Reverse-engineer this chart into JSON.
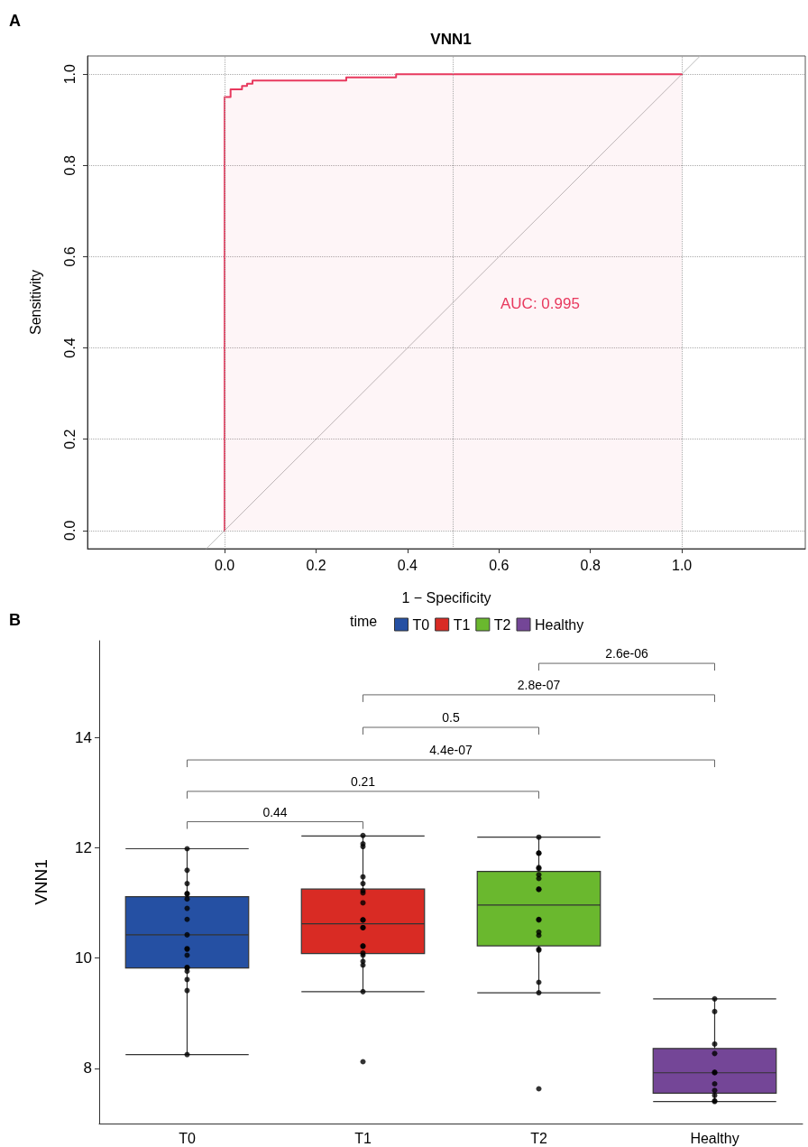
{
  "chart_data": [
    {
      "type": "line",
      "title": "VNN1",
      "xlabel": "1 − Specificity",
      "ylabel": "Sensitivity",
      "annotations": [
        "A",
        "AUC: 0.995"
      ],
      "xlim": [
        -0.3,
        1.27
      ],
      "ylim": [
        -0.04,
        1.04
      ],
      "xticks": [
        {
          "value": 0,
          "label": "0.0"
        },
        {
          "value": 0.2,
          "label": "0.2"
        },
        {
          "value": 0.4,
          "label": "0.4"
        },
        {
          "value": 0.6,
          "label": "0.6"
        },
        {
          "value": 0.8,
          "label": "0.8"
        },
        {
          "value": 1,
          "label": "1.0"
        }
      ],
      "yticks": [
        {
          "value": 0,
          "label": "0.0"
        },
        {
          "value": 0.2,
          "label": "0.2"
        },
        {
          "value": 0.4,
          "label": "0.4"
        },
        {
          "value": 0.6,
          "label": "0.6"
        },
        {
          "value": 0.8,
          "label": "0.8"
        },
        {
          "value": 1,
          "label": "1.0"
        }
      ],
      "grid": "y",
      "ref_lines": [
        {
          "axis": "x",
          "value": 0,
          "color": "#aaaaaa",
          "line_style": "dotted"
        },
        {
          "axis": "x",
          "value": 0.5,
          "color": "#aaaaaa",
          "line_style": "dotted"
        },
        {
          "axis": "x",
          "value": 1,
          "color": "#aaaaaa",
          "line_style": "dotted"
        }
      ],
      "series": [
        {
          "type": "area",
          "color": "#e8395e",
          "x": [
            0,
            0,
            0.013,
            0.013,
            0.038,
            0.038,
            0.049,
            0.049,
            0.061,
            0.061,
            0.266,
            0.266,
            0.375,
            0.375,
            1
          ],
          "values": [
            0,
            0.95,
            0.95,
            0.967,
            0.967,
            0.974,
            0.974,
            0.979,
            0.979,
            0.986,
            0.986,
            0.993,
            0.993,
            1,
            1
          ]
        },
        {
          "type": "line",
          "color": "#bbbbbb",
          "x": [
            -0.04,
            1.04
          ],
          "values": [
            -0.04,
            1.04
          ]
        }
      ]
    },
    {
      "type": "box",
      "ylabel": "VNN1",
      "legend": "top",
      "legend_title": "time",
      "categories": [
        "T0",
        "T1",
        "T2",
        "Healthy"
      ],
      "ylim": [
        7.0,
        15.75
      ],
      "yticks": [
        8,
        10,
        12,
        14
      ],
      "annotations": [
        "B",
        "2.6e-06",
        "2.8e-07",
        "0.5",
        "4.4e-07",
        "0.21",
        "0.44"
      ],
      "series": [
        {
          "type": "box",
          "name": "T0",
          "color": "#2550a3",
          "x": [
            "T0"
          ],
          "boxes": [
            {
              "low": 8.25,
              "q1": 9.82,
              "median": 10.42,
              "q3": 11.11,
              "high": 11.98
            }
          ]
        },
        {
          "type": "box",
          "name": "T1",
          "color": "#d92b24",
          "x": [
            "T1"
          ],
          "boxes": [
            {
              "low": 9.39,
              "q1": 10.08,
              "median": 10.62,
              "q3": 11.25,
              "high": 12.21
            }
          ]
        },
        {
          "type": "box",
          "name": "T2",
          "color": "#6ab82e",
          "x": [
            "T2"
          ],
          "boxes": [
            {
              "low": 9.37,
              "q1": 10.22,
              "median": 10.96,
              "q3": 11.57,
              "high": 12.19
            }
          ]
        },
        {
          "type": "box",
          "name": "Healthy",
          "color": "#744697",
          "x": [
            "Healthy"
          ],
          "boxes": [
            {
              "low": 7.4,
              "q1": 7.55,
              "median": 7.92,
              "q3": 8.36,
              "high": 9.26
            }
          ]
        },
        {
          "type": "scatter",
          "color": "#000000",
          "x": [
            "T0",
            "T0",
            "T0",
            "T0",
            "T0",
            "T0",
            "T0",
            "T0",
            "T0",
            "T0",
            "T0",
            "T0",
            "T0",
            "T0",
            "T0",
            "T0",
            "T0",
            "T0",
            "T1",
            "T1",
            "T1",
            "T1",
            "T1",
            "T1",
            "T1",
            "T1",
            "T1",
            "T1",
            "T1",
            "T1",
            "T1",
            "T1",
            "T1",
            "T1",
            "T1",
            "T1",
            "T1",
            "T1",
            "T2",
            "T2",
            "T2",
            "T2",
            "T2",
            "T2",
            "T2",
            "T2",
            "T2",
            "T2",
            "T2",
            "T2",
            "T2",
            "T2",
            "T2",
            "T2",
            "T2",
            "T2",
            "Healthy",
            "Healthy",
            "Healthy",
            "Healthy",
            "Healthy",
            "Healthy",
            "Healthy",
            "Healthy",
            "Healthy",
            "Healthy",
            "Healthy"
          ],
          "values": [
            11.98,
            11.59,
            11.35,
            11.17,
            11.16,
            11.07,
            10.9,
            10.7,
            10.42,
            10.17,
            10.16,
            10.05,
            9.83,
            9.82,
            9.76,
            9.61,
            9.41,
            8.25,
            12.22,
            12.07,
            12.02,
            11.47,
            11.35,
            11.22,
            11.18,
            11.0,
            10.69,
            10.69,
            10.55,
            10.55,
            10.22,
            10.21,
            10.09,
            10.05,
            9.94,
            9.87,
            9.39,
            8.12,
            12.19,
            11.9,
            11.9,
            11.64,
            11.62,
            11.51,
            11.44,
            11.25,
            11.24,
            10.7,
            10.69,
            10.47,
            10.41,
            10.16,
            10.14,
            9.56,
            9.37,
            7.63,
            9.26,
            9.03,
            8.44,
            8.27,
            7.93,
            7.92,
            7.72,
            7.6,
            7.51,
            7.41,
            7.4
          ]
        }
      ]
    }
  ]
}
